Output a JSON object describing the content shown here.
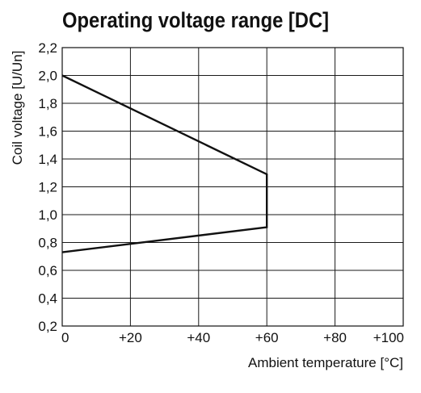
{
  "chart_data": {
    "type": "line",
    "title": "Operating voltage range [DC]",
    "xlabel": "Ambient temperature [°C]",
    "ylabel": "Coil voltage [U/Un]",
    "xlim": [
      0,
      100
    ],
    "ylim": [
      0.2,
      2.2
    ],
    "x_ticks": [
      0,
      20,
      40,
      60,
      80,
      100
    ],
    "x_tick_labels": [
      "0",
      "+20",
      "+40",
      "+60",
      "+80",
      "+100"
    ],
    "y_ticks": [
      0.2,
      0.4,
      0.6,
      0.8,
      1.0,
      1.2,
      1.4,
      1.6,
      1.8,
      2.0,
      2.2
    ],
    "y_tick_labels": [
      "0,2",
      "0,4",
      "0,6",
      "0,8",
      "1,0",
      "1,2",
      "1,4",
      "1,6",
      "1,8",
      "2,0",
      "2,2"
    ],
    "grid": true,
    "series": [
      {
        "points": [
          {
            "x": 0,
            "y": 2.0
          },
          {
            "x": 60,
            "y": 1.29
          },
          {
            "x": 60,
            "y": 0.91
          },
          {
            "x": 0,
            "y": 0.73
          }
        ],
        "color": "#111111"
      }
    ]
  }
}
